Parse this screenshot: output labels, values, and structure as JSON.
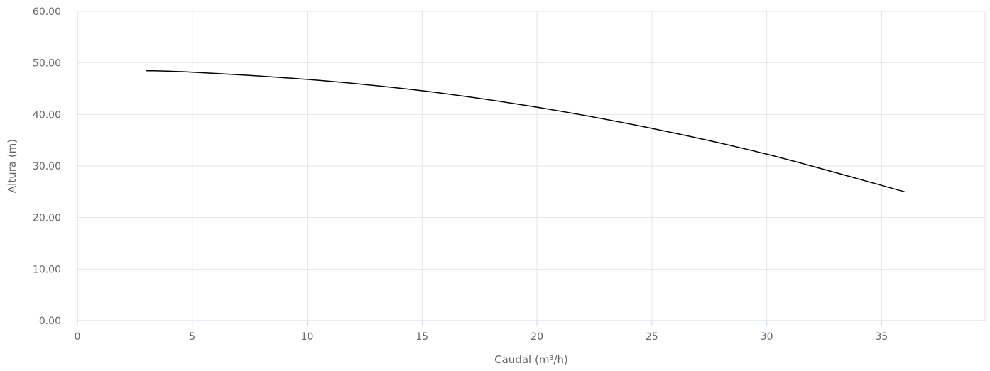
{
  "chart_data": {
    "type": "line",
    "title": "",
    "xlabel": "Caudal (m³/h)",
    "ylabel": "Altura (m)",
    "xlim": [
      0,
      39.5
    ],
    "ylim": [
      0,
      60
    ],
    "x_ticks": [
      0,
      5,
      10,
      15,
      20,
      25,
      30,
      35
    ],
    "x_tick_labels": [
      "0",
      "5",
      "10",
      "15",
      "20",
      "25",
      "30",
      "35"
    ],
    "y_ticks": [
      0,
      10,
      20,
      30,
      40,
      50,
      60
    ],
    "y_tick_labels": [
      "0.00",
      "10.00",
      "20.00",
      "30.00",
      "40.00",
      "50.00",
      "60.00"
    ],
    "grid": true,
    "legend": "none",
    "series": [
      {
        "color": "#000000",
        "x": [
          3,
          5,
          10,
          15,
          20,
          25,
          30,
          36
        ],
        "y": [
          48.5,
          48.2,
          46.8,
          44.6,
          41.4,
          37.3,
          32.3,
          25.0
        ]
      }
    ]
  }
}
